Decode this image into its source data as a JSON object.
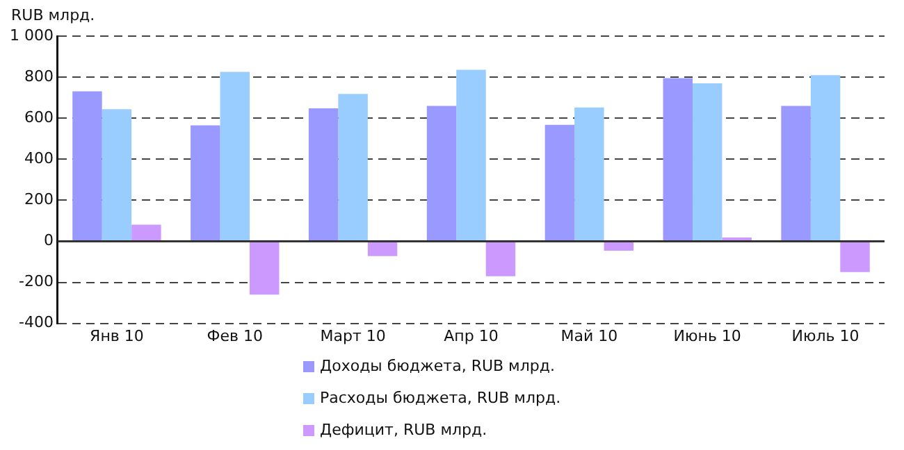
{
  "chart_data": {
    "type": "bar",
    "ylabel": "RUB млрд.",
    "categories": [
      "Янв 10",
      "Фев 10",
      "Март 10",
      "Апр 10",
      "Май 10",
      "Июнь 10",
      "Июль 10"
    ],
    "series": [
      {
        "name": "Доходы бюджета, RUB млрд.",
        "color": "#9999ff",
        "values": [
          731,
          565,
          648,
          660,
          568,
          795,
          660
        ]
      },
      {
        "name": "Расходы бюджета, RUB млрд.",
        "color": "#99ccff",
        "values": [
          644,
          826,
          718,
          836,
          652,
          770,
          810
        ]
      },
      {
        "name": "Дефицит, RUB млрд.",
        "color": "#cc99ff",
        "values": [
          81,
          -260,
          -72,
          -170,
          -46,
          18,
          -150
        ]
      }
    ],
    "ylim": [
      -400,
      1000
    ],
    "yticks": [
      {
        "value": -400,
        "label": "-400"
      },
      {
        "value": -200,
        "label": "-200"
      },
      0,
      200,
      400,
      600,
      800,
      {
        "value": 1000,
        "label": "1 000"
      }
    ],
    "grid": "y",
    "legend": "bottom"
  }
}
